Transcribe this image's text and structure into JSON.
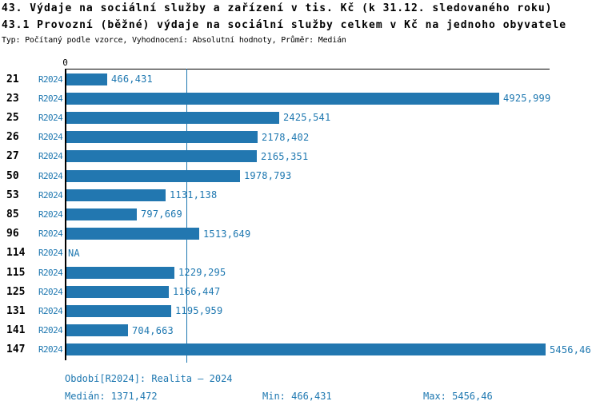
{
  "header": {
    "title1": "43. Výdaje na sociální služby a zařízení v tis. Kč (k 31.12. sledovaného roku)",
    "title2": "43.1 Provozní (běžné) výdaje na sociální služby celkem v Kč na jednoho obyvatele",
    "meta": "Typ: Počítaný podle vzorce, Vyhodnocení: Absolutní hodnoty, Průměr: Medián"
  },
  "colors": {
    "bar": "#2277b0",
    "text_blue": "#1d77b0",
    "axis": "#000000"
  },
  "chart_data": {
    "type": "bar",
    "orientation": "horizontal",
    "x_axis_zero_label": "0",
    "xlim": [
      0,
      5500
    ],
    "grid": false,
    "series_label": "R2024",
    "categories": [
      "21",
      "23",
      "25",
      "26",
      "27",
      "50",
      "53",
      "85",
      "96",
      "114",
      "115",
      "125",
      "131",
      "141",
      "147"
    ],
    "values": [
      466.431,
      4925.999,
      2425.541,
      2178.402,
      2165.351,
      1978.793,
      1131.138,
      797.669,
      1513.649,
      null,
      1229.295,
      1166.447,
      1195.959,
      704.663,
      5456.46
    ],
    "value_labels": [
      "466,431",
      "4925,999",
      "2425,541",
      "2178,402",
      "2165,351",
      "1978,793",
      "1131,138",
      "797,669",
      "1513,649",
      "NA",
      "1229,295",
      "1166,447",
      "1195,959",
      "704,663",
      "5456,46"
    ],
    "median_value": 1371.472,
    "min_value": 466.431,
    "max_value": 5456.46
  },
  "footer": {
    "period": "Období[R2024]: Realita – 2024",
    "median": "Medián: 1371,472",
    "min": "Min: 466,431",
    "max": "Max: 5456,46"
  }
}
